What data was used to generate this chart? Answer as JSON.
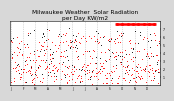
{
  "title": "Milwaukee Weather  Solar Radiation\nper Day KW/m2",
  "title_fontsize": 4.2,
  "bg_color": "#d8d8d8",
  "plot_bg": "#ffffff",
  "red_color": "#ff0000",
  "black_color": "#000000",
  "grid_color": "#bbbbbb",
  "ylim": [
    0,
    8
  ],
  "yticks": [
    1,
    2,
    3,
    4,
    5,
    6,
    7
  ],
  "ytick_labels": [
    "1",
    "2",
    "3",
    "4",
    "5",
    "6",
    "7"
  ],
  "num_days": 365,
  "monthly_ticks": [
    0,
    31,
    59,
    90,
    120,
    151,
    181,
    212,
    243,
    273,
    304,
    334
  ],
  "month_labels": [
    "J",
    "F",
    "M",
    "A",
    "M",
    "J",
    "J",
    "A",
    "S",
    "O",
    "N",
    "D"
  ]
}
